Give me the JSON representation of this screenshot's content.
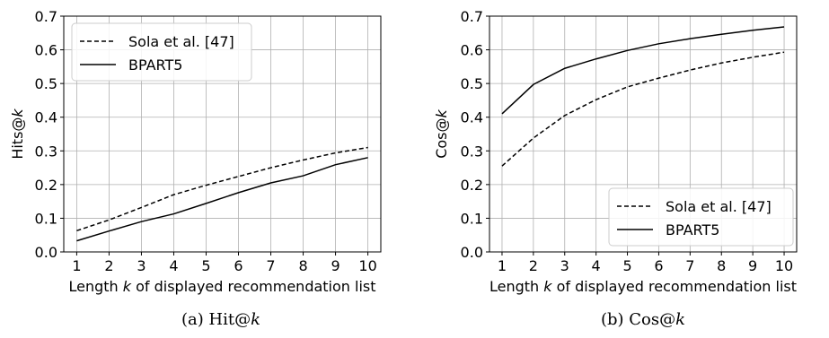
{
  "chart_data": [
    {
      "type": "line",
      "caption_prefix": "(a) Hit@",
      "caption_var": "k",
      "xlabel_pre": "Length ",
      "xlabel_var": "k",
      "xlabel_post": " of displayed recommendation list",
      "ylabel_pre": "Hits@",
      "ylabel_var": "k",
      "x": [
        1,
        2,
        3,
        4,
        5,
        6,
        7,
        8,
        9,
        10
      ],
      "ylim": [
        0,
        0.7
      ],
      "yticks": [
        "0.0",
        "0.1",
        "0.2",
        "0.3",
        "0.4",
        "0.5",
        "0.6",
        "0.7"
      ],
      "grid": true,
      "legend_position": "top-left",
      "series": [
        {
          "name": "Sola et al. [47]",
          "style": "dashed",
          "values": [
            0.063,
            0.095,
            0.132,
            0.17,
            0.198,
            0.224,
            0.25,
            0.273,
            0.294,
            0.31
          ]
        },
        {
          "name": "BPART5",
          "style": "solid",
          "values": [
            0.033,
            0.062,
            0.09,
            0.113,
            0.144,
            0.176,
            0.205,
            0.226,
            0.259,
            0.28
          ]
        }
      ]
    },
    {
      "type": "line",
      "caption_prefix": "(b) Cos@",
      "caption_var": "k",
      "xlabel_pre": "Length ",
      "xlabel_var": "k",
      "xlabel_post": " of displayed recommendation list",
      "ylabel_pre": "Cos@",
      "ylabel_var": "k",
      "x": [
        1,
        2,
        3,
        4,
        5,
        6,
        7,
        8,
        9,
        10
      ],
      "ylim": [
        0,
        0.7
      ],
      "yticks": [
        "0.0",
        "0.1",
        "0.2",
        "0.3",
        "0.4",
        "0.5",
        "0.6",
        "0.7"
      ],
      "grid": true,
      "legend_position": "bottom-right",
      "series": [
        {
          "name": "Sola et al. [47]",
          "style": "dashed",
          "values": [
            0.255,
            0.338,
            0.405,
            0.452,
            0.49,
            0.516,
            0.54,
            0.561,
            0.578,
            0.593
          ]
        },
        {
          "name": "BPART5",
          "style": "solid",
          "values": [
            0.41,
            0.497,
            0.545,
            0.573,
            0.598,
            0.618,
            0.633,
            0.646,
            0.658,
            0.668
          ]
        }
      ]
    }
  ]
}
